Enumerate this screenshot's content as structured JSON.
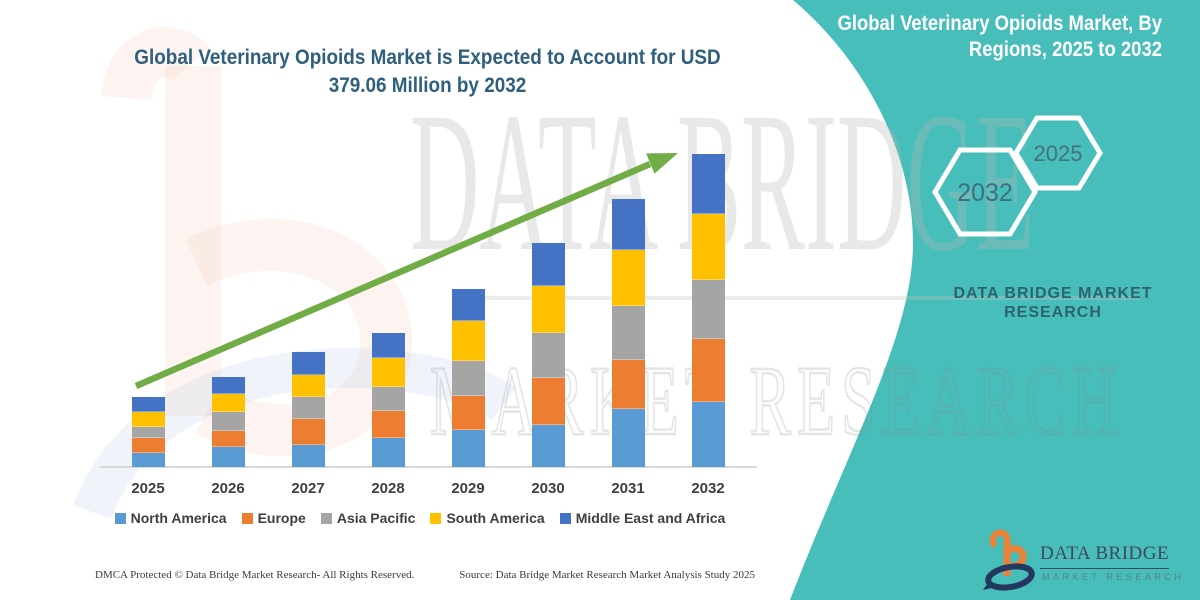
{
  "header": {
    "title_line1": "Global Veterinary Opioids Market is Expected to Account for USD",
    "title_line2": "379.06 Million by 2032"
  },
  "right_panel": {
    "title": "Global Veterinary Opioids Market, By Regions, 2025 to 2032",
    "hex_back_label": "2032",
    "hex_front_label": "2025",
    "caption": "DATA BRIDGE MARKET RESEARCH",
    "logo_text": "DATA BRIDGE",
    "logo_subtext": "MARKET RESEARCH",
    "background_color": "#48BEBA"
  },
  "watermark": {
    "line1": "DATA BRIDGE",
    "line2": "MARKET RESEARCH"
  },
  "footer": {
    "left": "DMCA Protected © Data Bridge Market Research-  All Rights Reserved.",
    "right": "Source: Data Bridge Market Research  Market Analysis Study 2025"
  },
  "chart_data": {
    "type": "bar",
    "stacked": true,
    "title": "Global Veterinary Opioids Market is Expected to Account for USD 379.06 Million by 2032",
    "unit": "USD Million",
    "categories": [
      "2025",
      "2026",
      "2027",
      "2028",
      "2029",
      "2030",
      "2031",
      "2032"
    ],
    "series": [
      {
        "name": "North America",
        "color": "#5B9BD5",
        "values": [
          17.7,
          25.2,
          27.9,
          35.8,
          45.3,
          51.5,
          71.5,
          79.6
        ]
      },
      {
        "name": "Europe",
        "color": "#ED7D31",
        "values": [
          17.7,
          19.7,
          30.6,
          32.5,
          40.9,
          56.9,
          58.5,
          75.8
        ]
      },
      {
        "name": "Asia Pacific",
        "color": "#A5A5A5",
        "values": [
          13.5,
          21.9,
          26.5,
          29.3,
          43.1,
          54.2,
          65.0,
          72.0
        ]
      },
      {
        "name": "South America",
        "color": "#FFC000",
        "values": [
          18.5,
          21.9,
          26.5,
          34.1,
          47.4,
          56.9,
          68.3,
          79.6
        ]
      },
      {
        "name": "Middle East and Africa",
        "color": "#4472C4",
        "values": [
          16.8,
          20.9,
          27.8,
          30.8,
          38.8,
          51.4,
          61.8,
          72.06
        ]
      }
    ],
    "totals_estimated": [
      84.2,
      109.6,
      139.3,
      162.5,
      215.5,
      270.9,
      325.1,
      379.06
    ],
    "ylim": [
      0,
      400
    ],
    "value_axis_visible": false,
    "gridlines": false,
    "legend_position": "bottom",
    "trend_arrow_color": "#70AD47"
  }
}
